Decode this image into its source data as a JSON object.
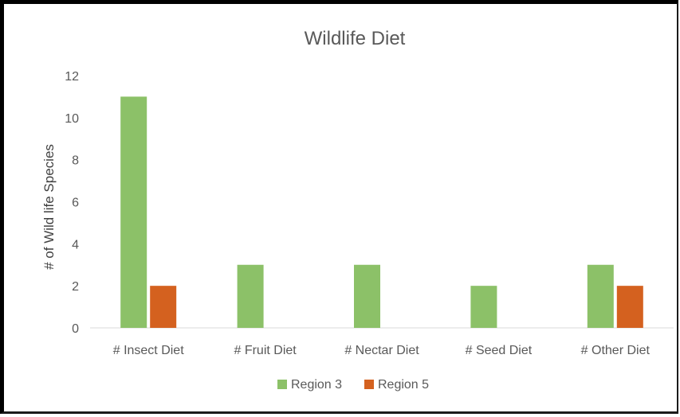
{
  "chart_data": {
    "type": "bar",
    "title": "Wildlife Diet",
    "xlabel": "",
    "ylabel": "# of Wild life Species",
    "categories": [
      "# Insect Diet",
      "# Fruit Diet",
      "# Nectar Diet",
      "# Seed Diet",
      "# Other Diet"
    ],
    "series": [
      {
        "name": "Region 3",
        "color": "#8cc168",
        "values": [
          11,
          3,
          3,
          2,
          3
        ]
      },
      {
        "name": "Region 5",
        "color": "#d4611f",
        "values": [
          2,
          0,
          0,
          0,
          2
        ]
      }
    ],
    "ylim": [
      0,
      12
    ],
    "yticks": [
      "0",
      "2",
      "4",
      "6",
      "8",
      "10",
      "12"
    ],
    "grid": false,
    "legend_position": "bottom"
  }
}
